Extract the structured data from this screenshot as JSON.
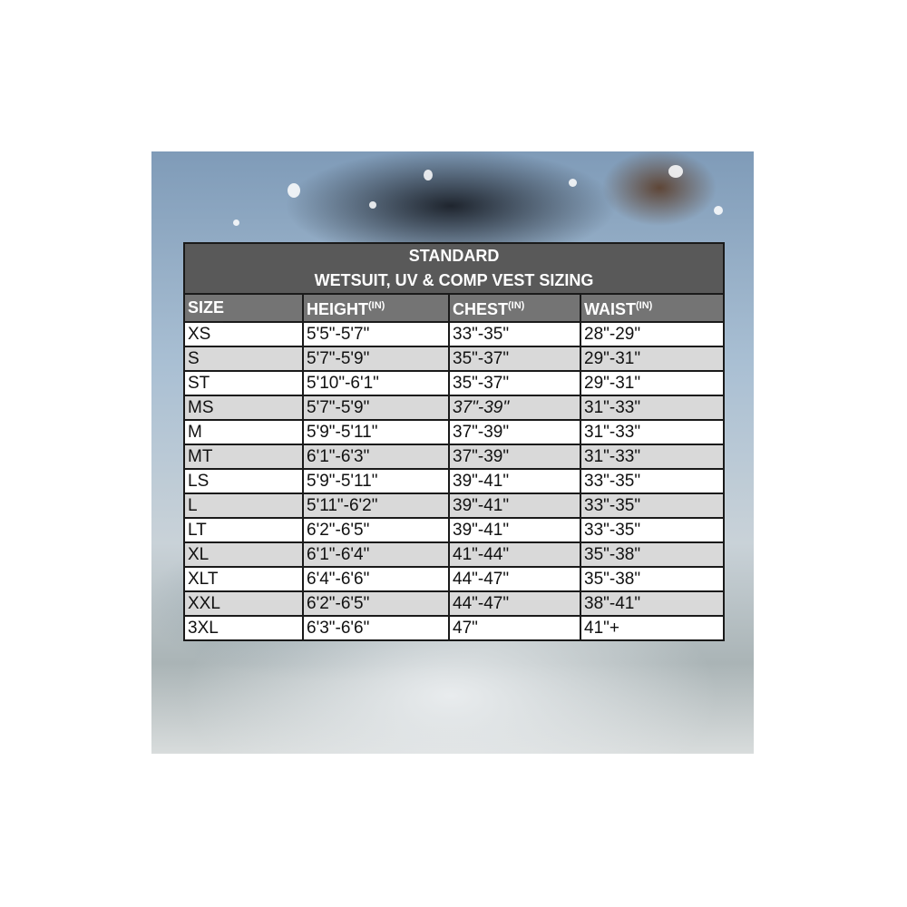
{
  "title_line1": "STANDARD",
  "title_line2": "WETSUIT, UV & COMP VEST SIZING",
  "columns": [
    {
      "label": "SIZE",
      "unit": ""
    },
    {
      "label": "HEIGHT",
      "unit": "(IN)"
    },
    {
      "label": "CHEST",
      "unit": "(IN)"
    },
    {
      "label": "WAIST",
      "unit": "(IN)"
    }
  ],
  "rows": [
    [
      "XS",
      "5'5\"-5'7\"",
      "33\"-35\"",
      "28\"-29\""
    ],
    [
      "S",
      "5'7\"-5'9\"",
      "35\"-37\"",
      "29\"-31\""
    ],
    [
      "ST",
      "5'10\"-6'1\"",
      "35\"-37\"",
      "29\"-31\""
    ],
    [
      "MS",
      "5'7\"-5'9\"",
      "37\"-39\"",
      "31\"-33\""
    ],
    [
      "M",
      "5'9\"-5'11\"",
      "37\"-39\"",
      "31\"-33\""
    ],
    [
      "MT",
      "6'1\"-6'3\"",
      "37\"-39\"",
      "31\"-33\""
    ],
    [
      "LS",
      "5'9\"-5'11\"",
      "39\"-41\"",
      "33\"-35\""
    ],
    [
      "L",
      "5'11\"-6'2\"",
      "39\"-41\"",
      "33\"-35\""
    ],
    [
      "LT",
      "6'2\"-6'5\"",
      "39\"-41\"",
      "33\"-35\""
    ],
    [
      "XL",
      "6'1\"-6'4\"",
      "41\"-44\"",
      "35\"-38\""
    ],
    [
      "XLT",
      "6'4\"-6'6\"",
      "44\"-47\"",
      "35\"-38\""
    ],
    [
      "XXL",
      "6'2\"-6'5\"",
      "44\"-47\"",
      "38\"-41\""
    ],
    [
      "3XL",
      "6'3\"-6'6\"",
      "47\"",
      "41\"+"
    ]
  ],
  "colors": {
    "title_bg": "#595959",
    "header_bg": "#747474",
    "stripe": "#d9d9d9"
  }
}
